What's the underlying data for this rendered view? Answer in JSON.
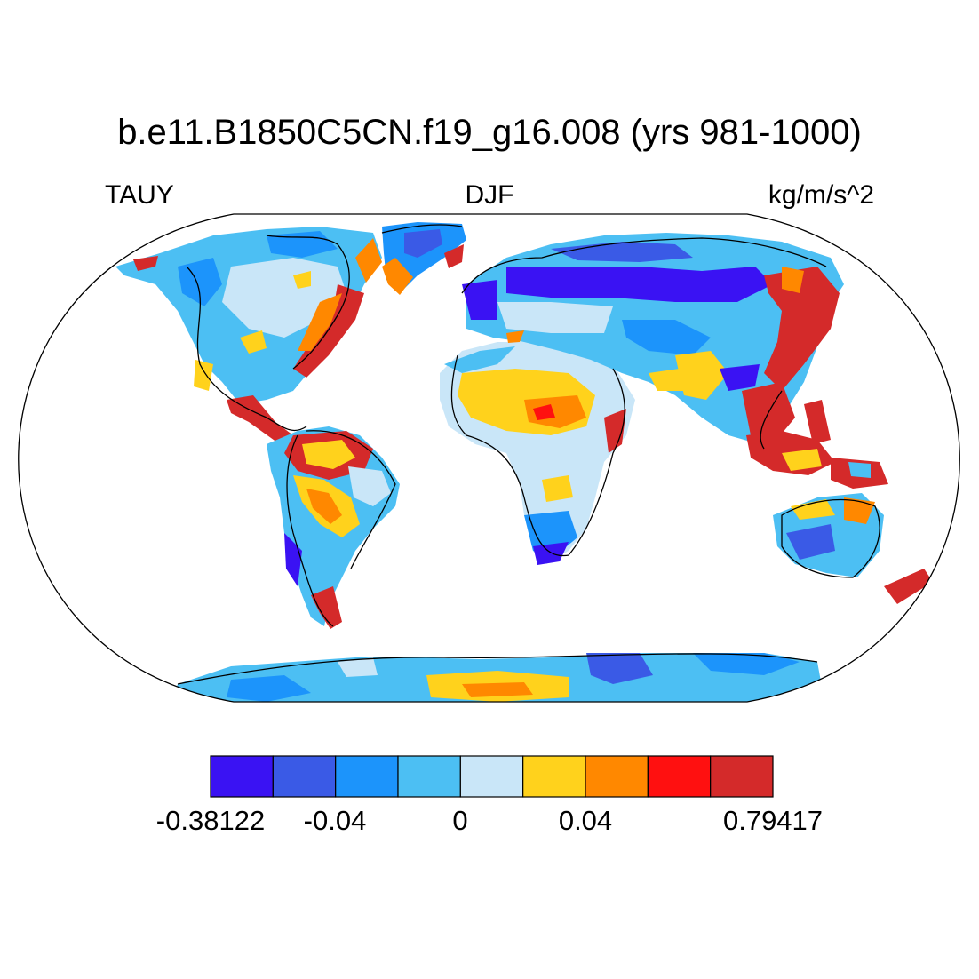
{
  "title": "b.e11.B1850C5CN.f19_g16.008 (yrs 981-1000)",
  "subtitle_left": "TAUY",
  "subtitle_center": "DJF",
  "subtitle_right": "kg/m/s^2",
  "map": {
    "projection": "Robinson",
    "variable": "TAUY",
    "season": "DJF",
    "land_only": true
  },
  "colorbar": {
    "colors": [
      "#3a12f3",
      "#3a5ae6",
      "#1c94fb",
      "#4cbff3",
      "#c9e6f8",
      "#ffd21c",
      "#ff8800",
      "#ff1010",
      "#d42a2a"
    ],
    "labels": [
      "-0.38122",
      "-0.04",
      "0",
      "0.04",
      "0.79417"
    ]
  },
  "colors": {
    "coastline": "#000000",
    "background": "#ffffff"
  }
}
